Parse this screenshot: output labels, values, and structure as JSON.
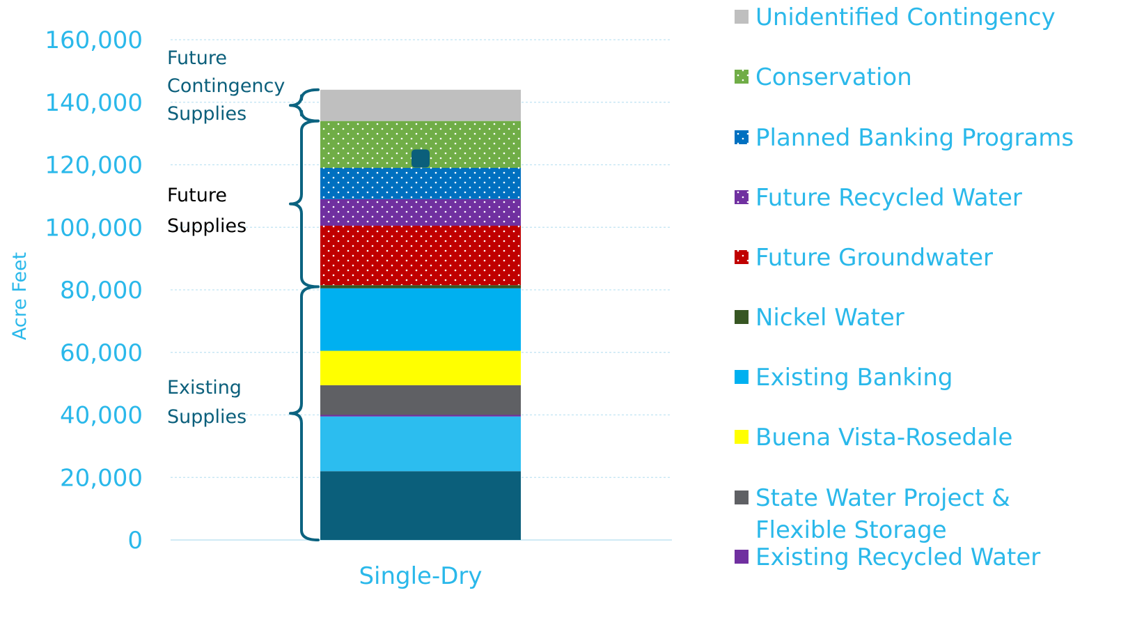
{
  "chart_data": {
    "type": "bar",
    "stacked": true,
    "categories": [
      "Single-Dry"
    ],
    "ylabel": "Acre Feet",
    "ylim": [
      0,
      160000
    ],
    "yticks": [
      0,
      20000,
      40000,
      60000,
      80000,
      100000,
      120000,
      140000,
      160000
    ],
    "ytick_labels": [
      "0",
      "20,000",
      "40,000",
      "60,000",
      "80,000",
      "100,000",
      "120,000",
      "140,000",
      "160,000"
    ],
    "grid": true,
    "legend_position": "right",
    "series": [
      {
        "name": "",
        "values": [
          22000
        ],
        "color": "#0b5f7b",
        "pattern": "solid"
      },
      {
        "name": "",
        "values": [
          17500
        ],
        "color": "#2cbdef",
        "pattern": "solid"
      },
      {
        "name": "Existing Recycled Water",
        "values": [
          500
        ],
        "color": "#7030a0",
        "pattern": "solid"
      },
      {
        "name": "State Water Project & Flexible Storage",
        "values": [
          9500
        ],
        "color": "#5f6064",
        "pattern": "solid"
      },
      {
        "name": "Buena Vista-Rosedale",
        "values": [
          11000
        ],
        "color": "#ffff00",
        "pattern": "solid"
      },
      {
        "name": "Existing Banking",
        "values": [
          20000
        ],
        "color": "#00b0f0",
        "pattern": "solid"
      },
      {
        "name": "Nickel Water",
        "values": [
          1000
        ],
        "color": "#375623",
        "pattern": "solid"
      },
      {
        "name": "Future Groundwater",
        "values": [
          19000
        ],
        "color": "#c00000",
        "pattern": "dotted"
      },
      {
        "name": "Future Recycled Water",
        "values": [
          8500
        ],
        "color": "#7030a0",
        "pattern": "dotted"
      },
      {
        "name": "Planned Banking Programs",
        "values": [
          10000
        ],
        "color": "#0070c0",
        "pattern": "dotted"
      },
      {
        "name": "Conservation",
        "values": [
          15000
        ],
        "color": "#70ad47",
        "pattern": "dotted"
      },
      {
        "name": "Unidentified Contingency",
        "values": [
          10000
        ],
        "color": "#bfbfbf",
        "pattern": "solid"
      }
    ],
    "legend_order": [
      "Unidentified Contingency",
      "Conservation",
      "Planned Banking Programs",
      "Future Recycled Water",
      "Future Groundwater",
      "Nickel Water",
      "Existing Banking",
      "Buena Vista-Rosedale",
      "State Water Project & Flexible Storage",
      "Existing Recycled Water"
    ],
    "annotations": [
      {
        "id": "future-contingency",
        "lines": [
          "Future",
          "Contingency",
          "Supplies"
        ],
        "range": [
          134000,
          144000
        ],
        "color": "#0b5f7b"
      },
      {
        "id": "future",
        "lines": [
          "Future",
          "Supplies"
        ],
        "range": [
          81000,
          134000
        ],
        "color": "#000000"
      },
      {
        "id": "existing",
        "lines": [
          "Existing",
          "Supplies"
        ],
        "range": [
          0,
          81000
        ],
        "color": "#0b5f7b"
      }
    ],
    "marker": {
      "series": "Planned Banking Programs",
      "value": 122000,
      "color": "#0b5f7b"
    }
  }
}
